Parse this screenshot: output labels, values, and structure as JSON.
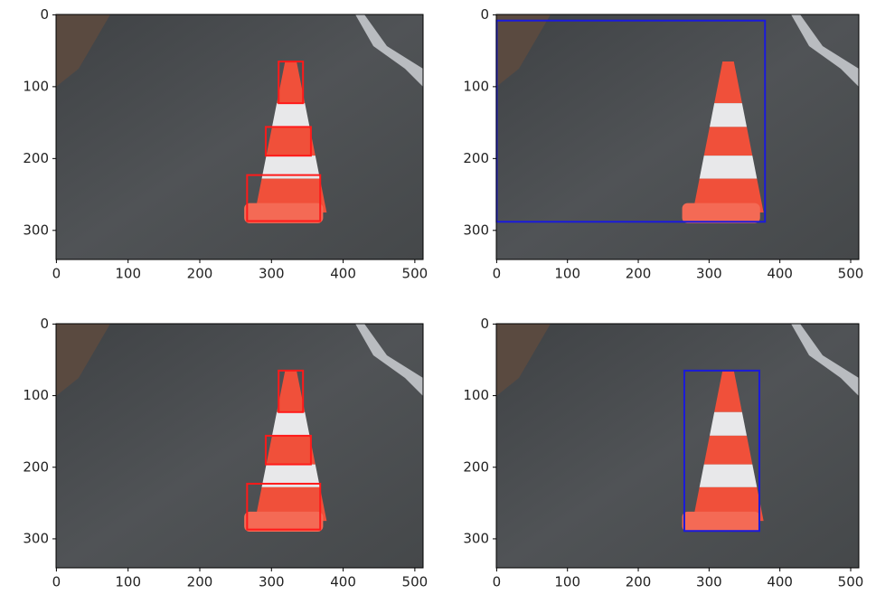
{
  "chart_data": [
    {
      "type": "image",
      "xlim": [
        -0.5,
        511.5
      ],
      "ylim": [
        340.5,
        -0.5
      ],
      "xticks": [
        0,
        100,
        200,
        300,
        400,
        500
      ],
      "yticks": [
        0,
        100,
        200,
        300
      ],
      "box_color": "#ff1a1a",
      "boxes": [
        [
          310,
          65,
          344,
          123
        ],
        [
          292,
          156,
          355,
          196
        ],
        [
          266,
          223,
          368,
          287
        ]
      ]
    },
    {
      "type": "image",
      "xlim": [
        -0.5,
        511.5
      ],
      "ylim": [
        340.5,
        -0.5
      ],
      "xticks": [
        0,
        100,
        200,
        300,
        400,
        500
      ],
      "yticks": [
        0,
        100,
        200,
        300
      ],
      "box_color": "#1a1adb",
      "boxes": [
        [
          0,
          8,
          379,
          288
        ]
      ]
    },
    {
      "type": "image",
      "xlim": [
        -0.5,
        511.5
      ],
      "ylim": [
        340.5,
        -0.5
      ],
      "xticks": [
        0,
        100,
        200,
        300,
        400,
        500
      ],
      "yticks": [
        0,
        100,
        200,
        300
      ],
      "box_color": "#ff1a1a",
      "boxes": [
        [
          310,
          65,
          344,
          123
        ],
        [
          292,
          156,
          355,
          196
        ],
        [
          266,
          223,
          368,
          287
        ]
      ]
    },
    {
      "type": "image",
      "xlim": [
        -0.5,
        511.5
      ],
      "ylim": [
        340.5,
        -0.5
      ],
      "xticks": [
        0,
        100,
        200,
        300,
        400,
        500
      ],
      "yticks": [
        0,
        100,
        200,
        300
      ],
      "box_color": "#1a1adb",
      "boxes": [
        [
          265,
          65,
          371,
          289
        ]
      ]
    }
  ]
}
